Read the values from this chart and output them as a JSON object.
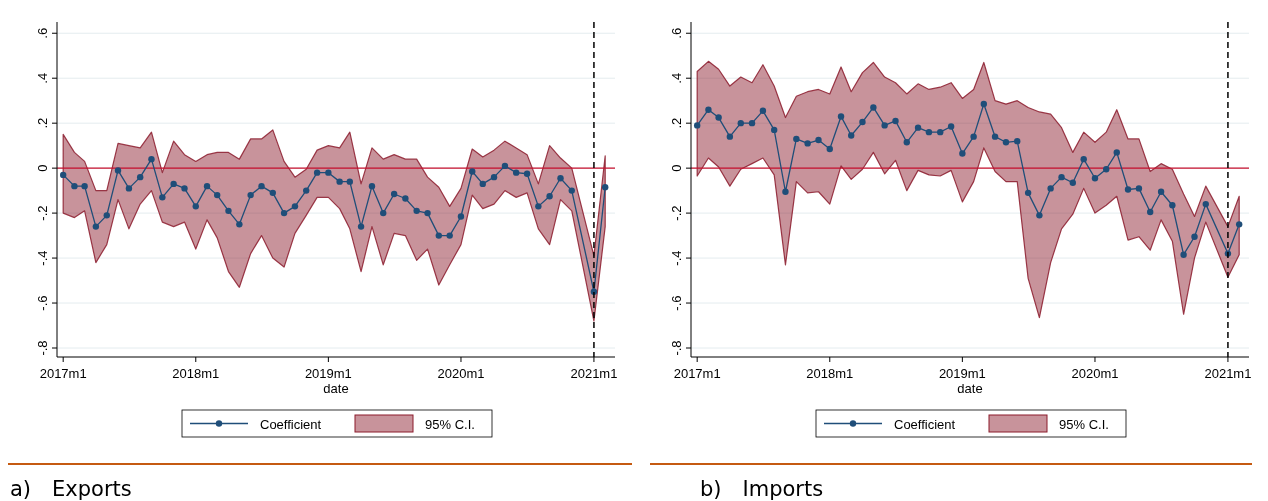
{
  "chart_data": [
    {
      "type": "line",
      "xlabel": "date",
      "legend": "bottom",
      "grid": "y",
      "marker": "circle",
      "x": [
        "2017-01",
        "2017-02",
        "2017-03",
        "2017-04",
        "2017-05",
        "2017-06",
        "2017-07",
        "2017-08",
        "2017-09",
        "2017-10",
        "2017-11",
        "2017-12",
        "2018-01",
        "2018-02",
        "2018-03",
        "2018-04",
        "2018-05",
        "2018-06",
        "2018-07",
        "2018-08",
        "2018-09",
        "2018-10",
        "2018-11",
        "2018-12",
        "2019-01",
        "2019-02",
        "2019-03",
        "2019-04",
        "2019-05",
        "2019-06",
        "2019-07",
        "2019-08",
        "2019-09",
        "2019-10",
        "2019-11",
        "2019-12",
        "2020-01",
        "2020-02",
        "2020-03",
        "2020-04",
        "2020-05",
        "2020-06",
        "2020-07",
        "2020-08",
        "2020-09",
        "2020-10",
        "2020-11",
        "2021-01",
        "2021-02"
      ],
      "xlim": [
        "2016-12-15",
        "2021-02-28"
      ],
      "xticks": [
        {
          "value": "2017-01",
          "label": "2017m1"
        },
        {
          "value": "2018-01",
          "label": "2018m1"
        },
        {
          "value": "2019-01",
          "label": "2019m1"
        },
        {
          "value": "2020-01",
          "label": "2020m1"
        },
        {
          "value": "2021-01",
          "label": "2021m1"
        }
      ],
      "ylim": [
        -0.84,
        0.65
      ],
      "yticks": [
        {
          "value": -0.8,
          "label": "-.8"
        },
        {
          "value": -0.6,
          "label": "-.6"
        },
        {
          "value": -0.4,
          "label": "-.4"
        },
        {
          "value": -0.2,
          "label": "-.2"
        },
        0,
        {
          "value": 0.2,
          "label": ".2"
        },
        {
          "value": 0.4,
          "label": ".4"
        },
        {
          "value": 0.6,
          "label": ".6"
        }
      ],
      "series": [
        {
          "name": "Coefficient",
          "color": "#1f4e79",
          "values": [
            -0.03,
            -0.08,
            -0.08,
            -0.26,
            -0.21,
            -0.01,
            -0.09,
            -0.04,
            0.04,
            -0.13,
            -0.07,
            -0.09,
            -0.17,
            -0.08,
            -0.12,
            -0.19,
            -0.25,
            -0.12,
            -0.08,
            -0.11,
            -0.2,
            -0.17,
            -0.1,
            -0.02,
            -0.02,
            -0.06,
            -0.06,
            -0.26,
            -0.08,
            -0.2,
            -0.115,
            -0.135,
            -0.19,
            -0.2,
            -0.3,
            -0.3,
            -0.215,
            -0.015,
            -0.07,
            -0.04,
            0.01,
            -0.02,
            -0.025,
            -0.17,
            -0.125,
            -0.045,
            -0.1,
            -0.55,
            -0.085
          ],
          "upper": [
            0.15,
            0.07,
            0.03,
            -0.1,
            -0.1,
            0.11,
            0.1,
            0.09,
            0.16,
            -0.02,
            0.12,
            0.06,
            0.03,
            0.06,
            0.07,
            0.07,
            0.04,
            0.13,
            0.13,
            0.17,
            0.03,
            -0.04,
            -0.005,
            0.08,
            0.1,
            0.09,
            0.16,
            -0.07,
            0.09,
            0.04,
            0.06,
            0.04,
            0.04,
            -0.04,
            -0.085,
            -0.17,
            -0.09,
            0.085,
            0.05,
            0.08,
            0.12,
            0.09,
            0.06,
            -0.07,
            0.1,
            0.045,
            0,
            -0.39,
            0.055
          ],
          "lower": [
            -0.2,
            -0.22,
            -0.19,
            -0.42,
            -0.34,
            -0.14,
            -0.27,
            -0.16,
            -0.1,
            -0.24,
            -0.26,
            -0.24,
            -0.36,
            -0.23,
            -0.31,
            -0.46,
            -0.53,
            -0.38,
            -0.3,
            -0.4,
            -0.44,
            -0.29,
            -0.21,
            -0.13,
            -0.13,
            -0.18,
            -0.27,
            -0.46,
            -0.26,
            -0.43,
            -0.29,
            -0.3,
            -0.41,
            -0.36,
            -0.52,
            -0.43,
            -0.34,
            -0.12,
            -0.18,
            -0.16,
            -0.1,
            -0.13,
            -0.11,
            -0.27,
            -0.34,
            -0.14,
            -0.19,
            -0.68,
            -0.26
          ]
        }
      ],
      "ref_lines": [
        {
          "axis": "y",
          "value": 0,
          "color": "#c8102e",
          "line_style": "solid"
        },
        {
          "axis": "x",
          "value": "2021-01",
          "color": "#000000",
          "line_style": "dashed"
        }
      ],
      "annotations": [
        "95% C.I.",
        "a) Exports"
      ]
    },
    {
      "type": "line",
      "xlabel": "date",
      "legend": "bottom",
      "grid": "y",
      "marker": "circle",
      "x": [
        "2017-01",
        "2017-02",
        "2017-03",
        "2017-04",
        "2017-05",
        "2017-06",
        "2017-07",
        "2017-08",
        "2017-09",
        "2017-10",
        "2017-11",
        "2017-12",
        "2018-01",
        "2018-02",
        "2018-03",
        "2018-04",
        "2018-05",
        "2018-06",
        "2018-07",
        "2018-08",
        "2018-09",
        "2018-10",
        "2018-11",
        "2018-12",
        "2019-01",
        "2019-02",
        "2019-03",
        "2019-04",
        "2019-05",
        "2019-06",
        "2019-07",
        "2019-08",
        "2019-09",
        "2019-10",
        "2019-11",
        "2019-12",
        "2020-01",
        "2020-02",
        "2020-03",
        "2020-04",
        "2020-05",
        "2020-06",
        "2020-07",
        "2020-08",
        "2020-09",
        "2020-10",
        "2020-11",
        "2021-01",
        "2021-02"
      ],
      "xlim": [
        "2016-12-15",
        "2021-02-28"
      ],
      "xticks": [
        {
          "value": "2017-01",
          "label": "2017m1"
        },
        {
          "value": "2018-01",
          "label": "2018m1"
        },
        {
          "value": "2019-01",
          "label": "2019m1"
        },
        {
          "value": "2020-01",
          "label": "2020m1"
        },
        {
          "value": "2021-01",
          "label": "2021m1"
        }
      ],
      "ylim": [
        -0.84,
        0.65
      ],
      "yticks": [
        {
          "value": -0.8,
          "label": "-.8"
        },
        {
          "value": -0.6,
          "label": "-.6"
        },
        {
          "value": -0.4,
          "label": "-.4"
        },
        {
          "value": -0.2,
          "label": "-.2"
        },
        0,
        {
          "value": 0.2,
          "label": ".2"
        },
        {
          "value": 0.4,
          "label": ".4"
        },
        {
          "value": 0.6,
          "label": ".6"
        }
      ],
      "series": [
        {
          "name": "Coefficient",
          "color": "#1f4e79",
          "values": [
            0.19,
            0.26,
            0.225,
            0.14,
            0.2,
            0.2,
            0.255,
            0.17,
            -0.105,
            0.13,
            0.11,
            0.125,
            0.085,
            0.23,
            0.145,
            0.205,
            0.27,
            0.19,
            0.21,
            0.115,
            0.18,
            0.16,
            0.16,
            0.185,
            0.065,
            0.14,
            0.285,
            0.14,
            0.115,
            0.12,
            -0.11,
            -0.21,
            -0.09,
            -0.04,
            -0.065,
            0.04,
            -0.045,
            -0.005,
            0.07,
            -0.095,
            -0.09,
            -0.195,
            -0.105,
            -0.165,
            -0.385,
            -0.305,
            -0.16,
            -0.38,
            -0.25
          ],
          "upper": [
            0.43,
            0.475,
            0.44,
            0.365,
            0.405,
            0.38,
            0.46,
            0.365,
            0.225,
            0.32,
            0.34,
            0.35,
            0.33,
            0.45,
            0.34,
            0.425,
            0.47,
            0.405,
            0.38,
            0.33,
            0.375,
            0.35,
            0.36,
            0.38,
            0.31,
            0.35,
            0.47,
            0.3,
            0.285,
            0.3,
            0.27,
            0.25,
            0.24,
            0.18,
            0.07,
            0.16,
            0.115,
            0.16,
            0.26,
            0.13,
            0.13,
            -0.015,
            0.02,
            -0.005,
            -0.115,
            -0.215,
            -0.08,
            -0.26,
            -0.125
          ],
          "lower": [
            -0.035,
            0.045,
            0.005,
            -0.08,
            -0.005,
            0.02,
            0.045,
            -0.03,
            -0.43,
            -0.06,
            -0.11,
            -0.105,
            -0.16,
            0.01,
            -0.05,
            -0.005,
            0.07,
            -0.025,
            0.035,
            -0.1,
            -0.01,
            -0.03,
            -0.035,
            -0.01,
            -0.15,
            -0.06,
            0.09,
            -0.015,
            -0.06,
            -0.06,
            -0.49,
            -0.665,
            -0.42,
            -0.27,
            -0.205,
            -0.09,
            -0.2,
            -0.165,
            -0.125,
            -0.32,
            -0.305,
            -0.365,
            -0.23,
            -0.325,
            -0.65,
            -0.4,
            -0.24,
            -0.485,
            -0.385
          ]
        }
      ],
      "ref_lines": [
        {
          "axis": "y",
          "value": 0,
          "color": "#c8102e",
          "line_style": "solid"
        },
        {
          "axis": "x",
          "value": "2021-01",
          "color": "#000000",
          "line_style": "dashed"
        }
      ],
      "annotations": [
        "95% C.I.",
        "b) Imports"
      ]
    }
  ]
}
